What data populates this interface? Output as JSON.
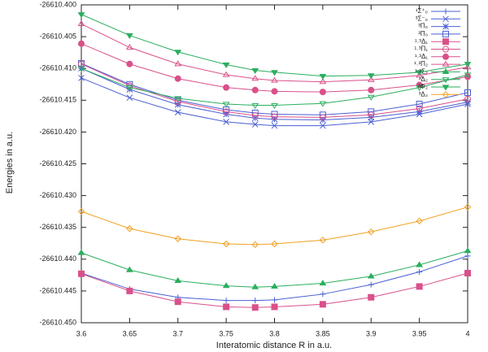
{
  "chart_data": {
    "type": "line",
    "xlabel": "Interatomic distance R in a.u.",
    "ylabel": "Energies in a.u.",
    "x": [
      3.6,
      3.65,
      3.7,
      3.75,
      3.78,
      3.8,
      3.85,
      3.9,
      3.95,
      4
    ],
    "xlim": [
      3.6,
      4
    ],
    "xticks": [
      3.6,
      3.65,
      3.7,
      3.75,
      3.8,
      3.85,
      3.9,
      3.95,
      4
    ],
    "ylim": [
      -26610.45,
      -26610.4
    ],
    "yticks": [
      {
        "value": -26610.45,
        "label": "-26610.450"
      },
      {
        "value": -26610.445,
        "label": "-26610.445"
      },
      {
        "value": -26610.44,
        "label": "-26610.440"
      },
      {
        "value": -26610.435,
        "label": "-26610.435"
      },
      {
        "value": -26610.43,
        "label": "-26610.430"
      },
      {
        "value": -26610.425,
        "label": "-26610.425"
      },
      {
        "value": -26610.42,
        "label": "-26610.420"
      },
      {
        "value": -26610.415,
        "label": "-26610.415"
      },
      {
        "value": -26610.41,
        "label": "-26610.410"
      },
      {
        "value": -26610.405,
        "label": "-26610.405"
      },
      {
        "value": -26610.4,
        "label": "-26610.400"
      }
    ],
    "legend": "top-right",
    "series": [
      {
        "name": "¹Σ⁺₀",
        "color": "#4a5fd4",
        "marker": "plus",
        "values": [
          -26610.4422,
          -26610.4447,
          -26610.446,
          -26610.4465,
          -26610.4465,
          -26610.4464,
          -26610.4455,
          -26610.444,
          -26610.442,
          -26610.4395
        ]
      },
      {
        "name": "³Σ⁻₀",
        "color": "#4a5fd4",
        "marker": "cross",
        "values": [
          -26610.4115,
          -26610.4146,
          -26610.4169,
          -26610.4184,
          -26610.4188,
          -26610.419,
          -26610.419,
          -26610.4184,
          -26610.4172,
          -26610.4156
        ]
      },
      {
        "name": "³Π₀",
        "color": "#4a5fd4",
        "marker": "star",
        "values": [
          -26610.41,
          -26610.4133,
          -26610.4157,
          -26610.4172,
          -26610.4178,
          -26610.418,
          -26610.4181,
          -26610.4177,
          -26610.4168,
          -26610.4153
        ]
      },
      {
        "name": "³Π₀",
        "color": "#4a5fd4",
        "marker": "square-open",
        "values": [
          -26610.4092,
          -26610.4125,
          -26610.415,
          -26610.4165,
          -26610.417,
          -26610.4172,
          -26610.4173,
          -26610.4168,
          -26610.4156,
          -26610.4138
        ]
      },
      {
        "name": "¹˒³Δ₁",
        "color": "#d9508a",
        "marker": "square-filled",
        "values": [
          -26610.4423,
          -26610.445,
          -26610.4467,
          -26610.4475,
          -26610.4476,
          -26610.4475,
          -26610.4471,
          -26610.446,
          -26610.4443,
          -26610.4422
        ]
      },
      {
        "name": "¹˒³Π₁",
        "color": "#d9508a",
        "marker": "circle-open",
        "values": [
          -26610.4093,
          -26610.4127,
          -26610.4152,
          -26610.4168,
          -26610.4174,
          -26610.4176,
          -26610.4177,
          -26610.4173,
          -26610.4163,
          -26610.4148
        ]
      },
      {
        "name": "¹˒³Δ₁",
        "color": "#d9508a",
        "marker": "circle-filled",
        "values": [
          -26610.4061,
          -26610.4093,
          -26610.4116,
          -26610.413,
          -26610.4134,
          -26610.4136,
          -26610.4137,
          -26610.4134,
          -26610.4126,
          -26610.4113
        ]
      },
      {
        "name": "¹˒³Π₂",
        "color": "#d9508a",
        "marker": "tri-up-open",
        "values": [
          -26610.403,
          -26610.4067,
          -26610.4093,
          -26610.411,
          -26610.4116,
          -26610.4119,
          -26610.4121,
          -26610.4118,
          -26610.4111,
          -26610.4098
        ]
      },
      {
        "name": "¹˒³Σ₂",
        "color": "#2aae5e",
        "marker": "tri-up-filled",
        "values": [
          -26610.439,
          -26610.4417,
          -26610.4434,
          -26610.4442,
          -26610.4444,
          -26610.4443,
          -26610.4438,
          -26610.4427,
          -26610.4409,
          -26610.4387
        ]
      },
      {
        "name": "³Δ₂",
        "color": "#2aae5e",
        "marker": "tri-down-open",
        "values": [
          -26610.41,
          -26610.413,
          -26610.4147,
          -26610.4156,
          -26610.4158,
          -26610.4158,
          -26610.4155,
          -26610.4145,
          -26610.413,
          -26610.411
        ]
      },
      {
        "name": "³Φ₂",
        "color": "#2aae5e",
        "marker": "tri-down-filled",
        "values": [
          -26610.4015,
          -26610.4048,
          -26610.4074,
          -26610.4094,
          -26610.4103,
          -26610.4106,
          -26610.4112,
          -26610.4111,
          -26610.4106,
          -26610.4093
        ]
      },
      {
        "name": "³Δ₃",
        "color": "#f0a020",
        "marker": "diamond-open",
        "values": [
          -26610.4325,
          -26610.4352,
          -26610.4368,
          -26610.4376,
          -26610.4377,
          -26610.4376,
          -26610.437,
          -26610.4357,
          -26610.434,
          -26610.4318
        ]
      }
    ]
  }
}
